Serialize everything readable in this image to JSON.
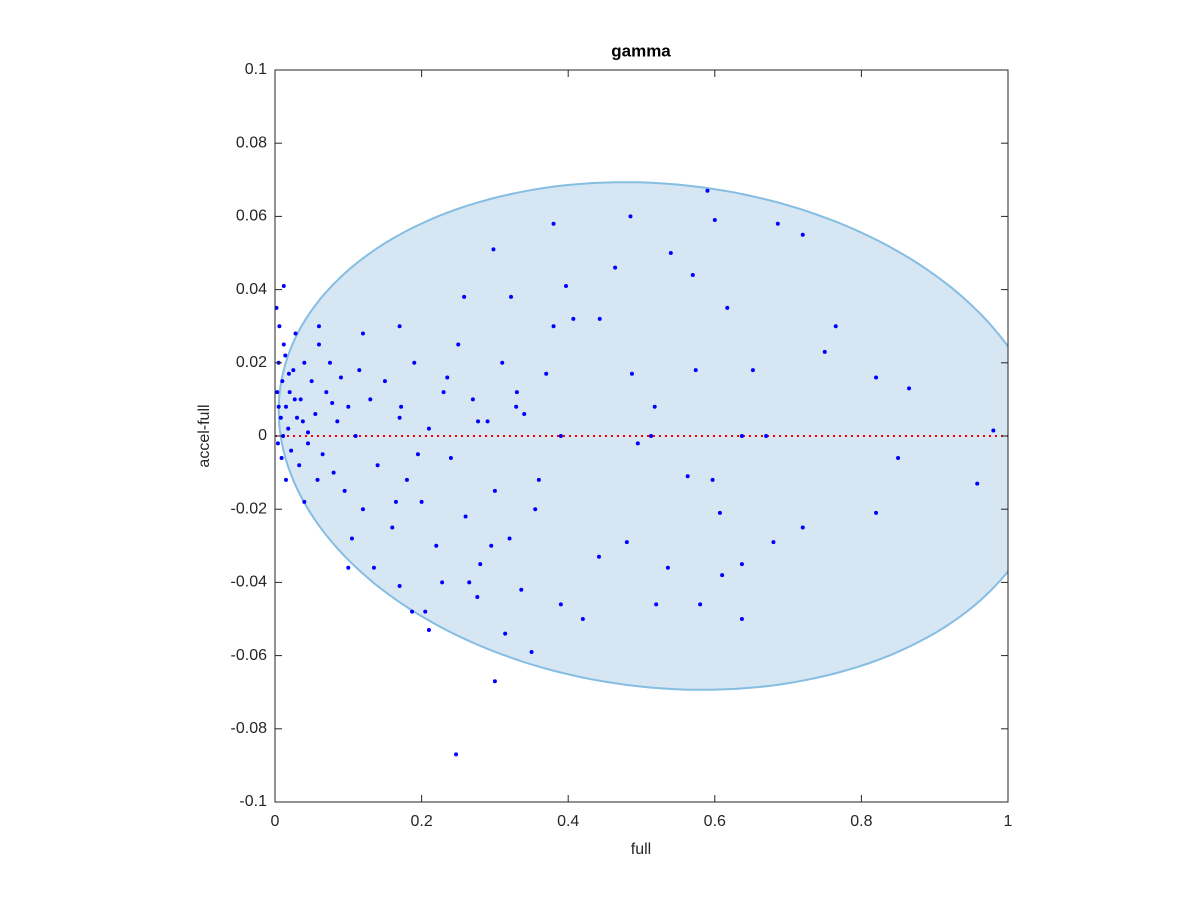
{
  "chart_data": {
    "type": "scatter",
    "title": "gamma",
    "x_label": "full",
    "y_label": "accel-full",
    "color": "#0000ff",
    "xlim": [
      0,
      1
    ],
    "xticks": [
      0,
      0.2,
      0.4,
      0.6,
      0.8,
      1
    ],
    "ylim": [
      -0.1,
      0.1
    ],
    "yticks": [
      -0.1,
      -0.08,
      -0.06,
      -0.04,
      -0.02,
      0,
      0.02,
      0.04,
      0.06,
      0.08,
      0.1
    ],
    "reference_line": {
      "y": 0,
      "color": "#ff0000"
    },
    "ellipse": {
      "center": [
        0.53,
        0
      ],
      "radii": [
        0.525,
        0.069
      ],
      "tilt": -0.007,
      "fill": "#d6e6f3",
      "stroke": "#86bde3"
    },
    "x": [
      0.59,
      0.247,
      0.3,
      0.35,
      0.012,
      0.38,
      0.485,
      0.298,
      0.6,
      0.686,
      0.72,
      0.765,
      0.75,
      0.82,
      0.865,
      0.98,
      0.958,
      0.85,
      0.82,
      0.72,
      0.68,
      0.637,
      0.58,
      0.52,
      0.42,
      0.205,
      0.21,
      0.1,
      0.187,
      0.54,
      0.57,
      0.464,
      0.617,
      0.67,
      0.637,
      0.513,
      0.495,
      0.39,
      0.597,
      0.563,
      0.607,
      0.637,
      0.61,
      0.536,
      0.48,
      0.442,
      0.39,
      0.336,
      0.314,
      0.276,
      0.228,
      0.17,
      0.258,
      0.322,
      0.397,
      0.407,
      0.443,
      0.518,
      0.574,
      0.487,
      0.652,
      0.37,
      0.329,
      0.277,
      0.172,
      0.003,
      0.005,
      0.008,
      0.01,
      0.004,
      0.012,
      0.015,
      0.006,
      0.018,
      0.02,
      0.002,
      0.009,
      0.025,
      0.03,
      0.022,
      0.014,
      0.035,
      0.04,
      0.028,
      0.045,
      0.05,
      0.055,
      0.033,
      0.06,
      0.065,
      0.07,
      0.075,
      0.08,
      0.085,
      0.09,
      0.095,
      0.1,
      0.11,
      0.115,
      0.12,
      0.13,
      0.14,
      0.15,
      0.16,
      0.17,
      0.18,
      0.19,
      0.2,
      0.21,
      0.22,
      0.23,
      0.24,
      0.25,
      0.26,
      0.27,
      0.28,
      0.29,
      0.3,
      0.31,
      0.32,
      0.34,
      0.36,
      0.38,
      0.015,
      0.04,
      0.06,
      0.12,
      0.17,
      0.045,
      0.005,
      0.011,
      0.019,
      0.027,
      0.038,
      0.058,
      0.078,
      0.105,
      0.135,
      0.165,
      0.195,
      0.235,
      0.265,
      0.295,
      0.33,
      0.355
    ],
    "values": [
      0.067,
      -0.087,
      -0.067,
      -0.059,
      0.041,
      0.058,
      0.06,
      0.051,
      0.059,
      0.058,
      0.055,
      0.03,
      0.023,
      0.016,
      0.013,
      0.0015,
      -0.013,
      -0.006,
      -0.021,
      -0.025,
      -0.029,
      -0.05,
      -0.046,
      -0.046,
      -0.05,
      -0.048,
      -0.053,
      -0.036,
      -0.048,
      0.05,
      0.044,
      0.046,
      0.035,
      0,
      0,
      0,
      -0.002,
      0,
      -0.012,
      -0.011,
      -0.021,
      -0.035,
      -0.038,
      -0.036,
      -0.029,
      -0.033,
      -0.046,
      -0.042,
      -0.054,
      -0.044,
      -0.04,
      -0.041,
      0.038,
      0.038,
      0.041,
      0.032,
      0.032,
      0.008,
      0.018,
      0.017,
      0.018,
      0.017,
      0.008,
      0.004,
      0.008,
      0.012,
      0.02,
      0.005,
      0.015,
      -0.002,
      0.025,
      0.008,
      0.03,
      0.002,
      0.012,
      0.035,
      -0.006,
      0.018,
      0.005,
      -0.004,
      0.022,
      0.01,
      0.02,
      0.028,
      -0.002,
      0.015,
      0.006,
      -0.008,
      0.025,
      -0.005,
      0.012,
      0.02,
      -0.01,
      0.004,
      0.016,
      -0.015,
      0.008,
      0.0,
      0.018,
      -0.02,
      0.01,
      -0.008,
      0.015,
      -0.025,
      0.005,
      -0.012,
      0.02,
      -0.018,
      0.002,
      -0.03,
      0.012,
      -0.006,
      0.025,
      -0.022,
      0.01,
      -0.035,
      0.004,
      -0.015,
      0.02,
      -0.028,
      0.006,
      -0.012,
      0.03,
      -0.012,
      -0.018,
      0.03,
      0.028,
      0.03,
      0.001,
      0.008,
      0.0,
      0.017,
      0.01,
      0.004,
      -0.012,
      0.009,
      -0.028,
      -0.036,
      -0.018,
      -0.005,
      0.016,
      -0.04,
      -0.03,
      0.012,
      -0.02
    ]
  }
}
